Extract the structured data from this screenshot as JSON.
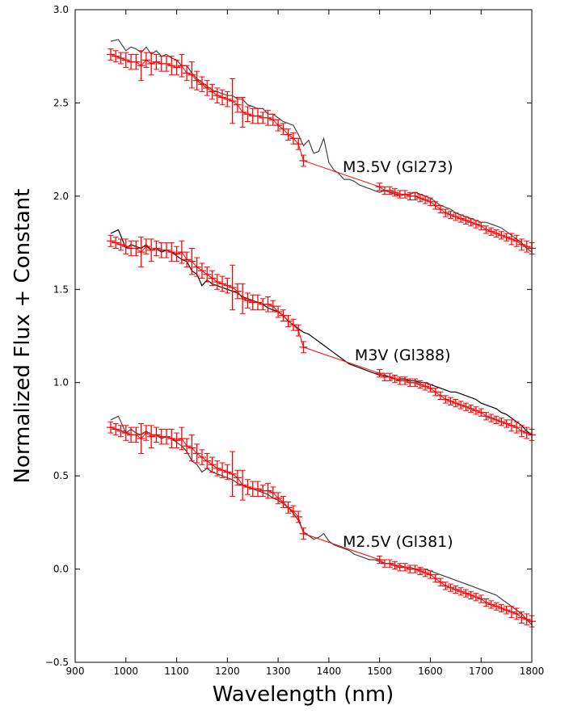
{
  "chart_data": {
    "type": "line",
    "title": "",
    "xlabel": "Wavelength (nm)",
    "ylabel": "Normalized Flux + Constant",
    "xlim": [
      900,
      1800
    ],
    "ylim": [
      -0.5,
      3.0
    ],
    "xticks": [
      "900",
      "1000",
      "1100",
      "1200",
      "1300",
      "1400",
      "1500",
      "1600",
      "1700",
      "1800"
    ],
    "yticks": [
      "−0.5",
      "0.0",
      "0.5",
      "1.0",
      "1.5",
      "2.0",
      "2.5",
      "3.0"
    ],
    "grid": false,
    "legend": "none",
    "colors": {
      "observed": "#ff0000",
      "template_dark": "#000000",
      "template_grey": "#444444"
    },
    "annotations": [
      {
        "text": "M3.5V (Gl273)",
        "x": 1645,
        "y": 2.13
      },
      {
        "text": "M3V (Gl388)",
        "x": 1640,
        "y": 1.12
      },
      {
        "text": "M2.5V (Gl381)",
        "x": 1645,
        "y": 0.12
      }
    ],
    "series": [
      {
        "offset": 2.0,
        "role": "template",
        "x": [
          970,
          985,
          1000,
          1010,
          1020,
          1030,
          1040,
          1050,
          1060,
          1070,
          1080,
          1090,
          1100,
          1110,
          1120,
          1130,
          1140,
          1150,
          1160,
          1170,
          1180,
          1190,
          1200,
          1210,
          1220,
          1230,
          1240,
          1250,
          1260,
          1270,
          1280,
          1290,
          1300,
          1310,
          1320,
          1330,
          1340,
          1350,
          1360,
          1370,
          1380,
          1390,
          1400,
          1410,
          1420,
          1430,
          1440,
          1450,
          1460,
          1470,
          1480,
          1490,
          1500,
          1510,
          1520,
          1530,
          1540,
          1550,
          1560,
          1570,
          1580,
          1590,
          1600,
          1610,
          1620,
          1630,
          1640,
          1650,
          1660,
          1670,
          1680,
          1690,
          1700,
          1710,
          1720,
          1730,
          1740,
          1750,
          1760,
          1770,
          1780,
          1790,
          1800
        ],
        "y": [
          2.83,
          2.84,
          2.78,
          2.8,
          2.79,
          2.77,
          2.8,
          2.76,
          2.78,
          2.75,
          2.76,
          2.74,
          2.73,
          2.7,
          2.7,
          2.66,
          2.63,
          2.61,
          2.59,
          2.57,
          2.56,
          2.55,
          2.54,
          2.54,
          2.52,
          2.52,
          2.49,
          2.48,
          2.47,
          2.47,
          2.44,
          2.44,
          2.42,
          2.4,
          2.39,
          2.38,
          2.33,
          2.27,
          2.3,
          2.23,
          2.24,
          2.31,
          2.18,
          2.14,
          2.12,
          2.09,
          2.09,
          2.08,
          2.06,
          2.05,
          2.04,
          2.03,
          2.02,
          2.03,
          2.02,
          2.01,
          2.0,
          2.01,
          2.01,
          2.02,
          2.01,
          2.0,
          1.99,
          1.97,
          1.95,
          1.94,
          1.93,
          1.91,
          1.9,
          1.89,
          1.88,
          1.87,
          1.86,
          1.86,
          1.85,
          1.84,
          1.83,
          1.81,
          1.79,
          1.77,
          1.75,
          1.72,
          1.7
        ]
      },
      {
        "offset": 2.0,
        "role": "observed",
        "x": [
          970,
          980,
          990,
          1000,
          1010,
          1020,
          1030,
          1040,
          1050,
          1060,
          1070,
          1080,
          1090,
          1100,
          1110,
          1120,
          1130,
          1140,
          1150,
          1160,
          1170,
          1180,
          1190,
          1200,
          1210,
          1220,
          1230,
          1240,
          1250,
          1260,
          1270,
          1280,
          1290,
          1300,
          1310,
          1320,
          1330,
          1340,
          1350,
          1500,
          1510,
          1520,
          1530,
          1540,
          1550,
          1560,
          1570,
          1580,
          1590,
          1600,
          1610,
          1620,
          1630,
          1640,
          1650,
          1660,
          1670,
          1680,
          1690,
          1700,
          1710,
          1720,
          1730,
          1740,
          1750,
          1760,
          1770,
          1780,
          1790,
          1800
        ],
        "y": [
          2.76,
          2.75,
          2.74,
          2.73,
          2.72,
          2.72,
          2.7,
          2.73,
          2.71,
          2.72,
          2.71,
          2.71,
          2.7,
          2.69,
          2.7,
          2.66,
          2.65,
          2.62,
          2.6,
          2.58,
          2.56,
          2.54,
          2.53,
          2.52,
          2.51,
          2.49,
          2.45,
          2.44,
          2.43,
          2.43,
          2.42,
          2.42,
          2.41,
          2.38,
          2.36,
          2.33,
          2.31,
          2.28,
          2.19,
          2.05,
          2.03,
          2.03,
          2.02,
          2.01,
          2.01,
          2.0,
          2.0,
          1.99,
          1.98,
          1.97,
          1.95,
          1.93,
          1.91,
          1.9,
          1.89,
          1.88,
          1.87,
          1.86,
          1.85,
          1.84,
          1.82,
          1.81,
          1.8,
          1.79,
          1.78,
          1.77,
          1.76,
          1.74,
          1.73,
          1.72
        ],
        "err": [
          0.03,
          0.03,
          0.03,
          0.04,
          0.04,
          0.04,
          0.08,
          0.04,
          0.06,
          0.04,
          0.04,
          0.04,
          0.05,
          0.04,
          0.06,
          0.04,
          0.07,
          0.05,
          0.04,
          0.04,
          0.04,
          0.04,
          0.04,
          0.04,
          0.12,
          0.04,
          0.08,
          0.04,
          0.04,
          0.04,
          0.03,
          0.04,
          0.03,
          0.03,
          0.03,
          0.03,
          0.03,
          0.03,
          0.03,
          0.02,
          0.02,
          0.02,
          0.02,
          0.02,
          0.02,
          0.02,
          0.02,
          0.02,
          0.02,
          0.02,
          0.02,
          0.02,
          0.02,
          0.02,
          0.02,
          0.02,
          0.02,
          0.02,
          0.02,
          0.02,
          0.02,
          0.02,
          0.02,
          0.02,
          0.02,
          0.03,
          0.03,
          0.03,
          0.03,
          0.03
        ]
      },
      {
        "offset": 1.0,
        "role": "template",
        "x": [
          970,
          985,
          1000,
          1010,
          1020,
          1030,
          1040,
          1050,
          1060,
          1070,
          1080,
          1090,
          1100,
          1110,
          1120,
          1130,
          1140,
          1150,
          1160,
          1170,
          1180,
          1190,
          1200,
          1210,
          1220,
          1230,
          1240,
          1250,
          1260,
          1270,
          1280,
          1290,
          1300,
          1310,
          1320,
          1330,
          1340,
          1350,
          1360,
          1370,
          1380,
          1390,
          1400,
          1410,
          1420,
          1430,
          1440,
          1450,
          1460,
          1470,
          1480,
          1490,
          1500,
          1510,
          1520,
          1530,
          1540,
          1550,
          1560,
          1570,
          1580,
          1590,
          1600,
          1610,
          1620,
          1630,
          1640,
          1650,
          1660,
          1670,
          1680,
          1690,
          1700,
          1710,
          1720,
          1730,
          1740,
          1750,
          1760,
          1770,
          1780,
          1790,
          1800
        ],
        "y": [
          1.8,
          1.82,
          1.72,
          1.74,
          1.73,
          1.72,
          1.74,
          1.71,
          1.72,
          1.7,
          1.71,
          1.7,
          1.68,
          1.66,
          1.65,
          1.6,
          1.58,
          1.52,
          1.55,
          1.53,
          1.52,
          1.51,
          1.5,
          1.49,
          1.48,
          1.46,
          1.45,
          1.44,
          1.43,
          1.42,
          1.4,
          1.39,
          1.38,
          1.36,
          1.33,
          1.31,
          1.29,
          1.27,
          1.26,
          1.24,
          1.22,
          1.2,
          1.18,
          1.16,
          1.14,
          1.12,
          1.1,
          1.09,
          1.08,
          1.07,
          1.06,
          1.05,
          1.04,
          1.04,
          1.03,
          1.02,
          1.02,
          1.02,
          1.01,
          1.01,
          1.0,
          1.0,
          0.99,
          0.98,
          0.97,
          0.96,
          0.95,
          0.95,
          0.94,
          0.93,
          0.92,
          0.91,
          0.89,
          0.88,
          0.87,
          0.86,
          0.84,
          0.83,
          0.81,
          0.79,
          0.77,
          0.74,
          0.72
        ]
      },
      {
        "offset": 1.0,
        "role": "observed",
        "x": [
          970,
          980,
          990,
          1000,
          1010,
          1020,
          1030,
          1040,
          1050,
          1060,
          1070,
          1080,
          1090,
          1100,
          1110,
          1120,
          1130,
          1140,
          1150,
          1160,
          1170,
          1180,
          1190,
          1200,
          1210,
          1220,
          1230,
          1240,
          1250,
          1260,
          1270,
          1280,
          1290,
          1300,
          1310,
          1320,
          1330,
          1340,
          1350,
          1500,
          1510,
          1520,
          1530,
          1540,
          1550,
          1560,
          1570,
          1580,
          1590,
          1600,
          1610,
          1620,
          1630,
          1640,
          1650,
          1660,
          1670,
          1680,
          1690,
          1700,
          1710,
          1720,
          1730,
          1740,
          1750,
          1760,
          1770,
          1780,
          1790,
          1800
        ],
        "y": [
          1.76,
          1.75,
          1.74,
          1.73,
          1.72,
          1.72,
          1.7,
          1.73,
          1.71,
          1.72,
          1.71,
          1.71,
          1.7,
          1.69,
          1.7,
          1.66,
          1.65,
          1.62,
          1.6,
          1.58,
          1.56,
          1.54,
          1.53,
          1.52,
          1.51,
          1.49,
          1.45,
          1.44,
          1.43,
          1.43,
          1.42,
          1.42,
          1.41,
          1.38,
          1.36,
          1.33,
          1.31,
          1.28,
          1.19,
          1.05,
          1.03,
          1.03,
          1.02,
          1.01,
          1.01,
          1.0,
          1.0,
          0.99,
          0.98,
          0.97,
          0.95,
          0.93,
          0.91,
          0.9,
          0.89,
          0.88,
          0.87,
          0.86,
          0.85,
          0.84,
          0.82,
          0.81,
          0.8,
          0.79,
          0.78,
          0.77,
          0.76,
          0.74,
          0.73,
          0.72
        ],
        "err": [
          0.03,
          0.03,
          0.03,
          0.04,
          0.04,
          0.04,
          0.08,
          0.04,
          0.06,
          0.04,
          0.04,
          0.04,
          0.05,
          0.04,
          0.06,
          0.04,
          0.07,
          0.05,
          0.04,
          0.04,
          0.04,
          0.04,
          0.04,
          0.04,
          0.12,
          0.04,
          0.08,
          0.04,
          0.04,
          0.04,
          0.03,
          0.04,
          0.03,
          0.03,
          0.03,
          0.03,
          0.03,
          0.03,
          0.03,
          0.02,
          0.02,
          0.02,
          0.02,
          0.02,
          0.02,
          0.02,
          0.02,
          0.02,
          0.02,
          0.02,
          0.02,
          0.02,
          0.02,
          0.02,
          0.02,
          0.02,
          0.02,
          0.02,
          0.02,
          0.02,
          0.02,
          0.02,
          0.02,
          0.02,
          0.02,
          0.03,
          0.03,
          0.03,
          0.03,
          0.03
        ]
      },
      {
        "offset": 0.0,
        "role": "template",
        "x": [
          970,
          985,
          1000,
          1010,
          1020,
          1030,
          1040,
          1050,
          1060,
          1070,
          1080,
          1090,
          1100,
          1110,
          1120,
          1130,
          1140,
          1150,
          1160,
          1170,
          1180,
          1190,
          1200,
          1210,
          1220,
          1230,
          1240,
          1250,
          1260,
          1270,
          1280,
          1290,
          1300,
          1310,
          1320,
          1330,
          1340,
          1350,
          1360,
          1370,
          1380,
          1390,
          1400,
          1410,
          1420,
          1430,
          1440,
          1450,
          1460,
          1470,
          1480,
          1490,
          1500,
          1510,
          1520,
          1530,
          1540,
          1550,
          1560,
          1570,
          1580,
          1590,
          1600,
          1610,
          1620,
          1630,
          1640,
          1650,
          1660,
          1670,
          1680,
          1690,
          1700,
          1710,
          1720,
          1730,
          1740,
          1750,
          1760,
          1770,
          1780,
          1790,
          1800
        ],
        "y": [
          0.8,
          0.82,
          0.73,
          0.75,
          0.73,
          0.72,
          0.74,
          0.72,
          0.72,
          0.7,
          0.71,
          0.7,
          0.68,
          0.66,
          0.63,
          0.58,
          0.56,
          0.52,
          0.54,
          0.52,
          0.51,
          0.5,
          0.49,
          0.48,
          0.46,
          0.45,
          0.44,
          0.43,
          0.42,
          0.41,
          0.4,
          0.38,
          0.37,
          0.35,
          0.33,
          0.3,
          0.26,
          0.2,
          0.18,
          0.16,
          0.17,
          0.19,
          0.15,
          0.13,
          0.12,
          0.11,
          0.1,
          0.08,
          0.07,
          0.06,
          0.05,
          0.05,
          0.04,
          0.03,
          0.03,
          0.02,
          0.02,
          0.01,
          0.01,
          0.0,
          0.0,
          0.0,
          -0.01,
          -0.02,
          -0.03,
          -0.04,
          -0.05,
          -0.06,
          -0.07,
          -0.08,
          -0.09,
          -0.1,
          -0.11,
          -0.12,
          -0.13,
          -0.14,
          -0.16,
          -0.18,
          -0.2,
          -0.22,
          -0.24,
          -0.27,
          -0.3
        ]
      },
      {
        "offset": 0.0,
        "role": "observed",
        "x": [
          970,
          980,
          990,
          1000,
          1010,
          1020,
          1030,
          1040,
          1050,
          1060,
          1070,
          1080,
          1090,
          1100,
          1110,
          1120,
          1130,
          1140,
          1150,
          1160,
          1170,
          1180,
          1190,
          1200,
          1210,
          1220,
          1230,
          1240,
          1250,
          1260,
          1270,
          1280,
          1290,
          1300,
          1310,
          1320,
          1330,
          1340,
          1350,
          1500,
          1510,
          1520,
          1530,
          1540,
          1550,
          1560,
          1570,
          1580,
          1590,
          1600,
          1610,
          1620,
          1630,
          1640,
          1650,
          1660,
          1670,
          1680,
          1690,
          1700,
          1710,
          1720,
          1730,
          1740,
          1750,
          1760,
          1770,
          1780,
          1790,
          1800
        ],
        "y": [
          0.76,
          0.75,
          0.74,
          0.73,
          0.72,
          0.72,
          0.7,
          0.73,
          0.71,
          0.72,
          0.71,
          0.71,
          0.7,
          0.69,
          0.7,
          0.66,
          0.65,
          0.62,
          0.6,
          0.58,
          0.56,
          0.54,
          0.53,
          0.52,
          0.51,
          0.49,
          0.45,
          0.44,
          0.43,
          0.43,
          0.42,
          0.42,
          0.41,
          0.38,
          0.36,
          0.33,
          0.31,
          0.28,
          0.19,
          0.05,
          0.03,
          0.03,
          0.02,
          0.01,
          0.01,
          0.0,
          0.0,
          -0.01,
          -0.02,
          -0.03,
          -0.05,
          -0.07,
          -0.09,
          -0.1,
          -0.11,
          -0.12,
          -0.13,
          -0.14,
          -0.15,
          -0.16,
          -0.18,
          -0.19,
          -0.2,
          -0.21,
          -0.22,
          -0.23,
          -0.24,
          -0.26,
          -0.27,
          -0.28
        ],
        "err": [
          0.03,
          0.03,
          0.03,
          0.04,
          0.04,
          0.04,
          0.08,
          0.04,
          0.06,
          0.04,
          0.04,
          0.04,
          0.05,
          0.04,
          0.06,
          0.04,
          0.07,
          0.05,
          0.04,
          0.04,
          0.04,
          0.04,
          0.04,
          0.04,
          0.12,
          0.04,
          0.08,
          0.04,
          0.04,
          0.04,
          0.03,
          0.04,
          0.03,
          0.03,
          0.03,
          0.03,
          0.03,
          0.03,
          0.03,
          0.02,
          0.02,
          0.02,
          0.02,
          0.02,
          0.02,
          0.02,
          0.02,
          0.02,
          0.02,
          0.02,
          0.02,
          0.02,
          0.02,
          0.02,
          0.02,
          0.02,
          0.02,
          0.02,
          0.02,
          0.02,
          0.02,
          0.02,
          0.02,
          0.02,
          0.02,
          0.03,
          0.03,
          0.03,
          0.03,
          0.03
        ]
      }
    ]
  }
}
